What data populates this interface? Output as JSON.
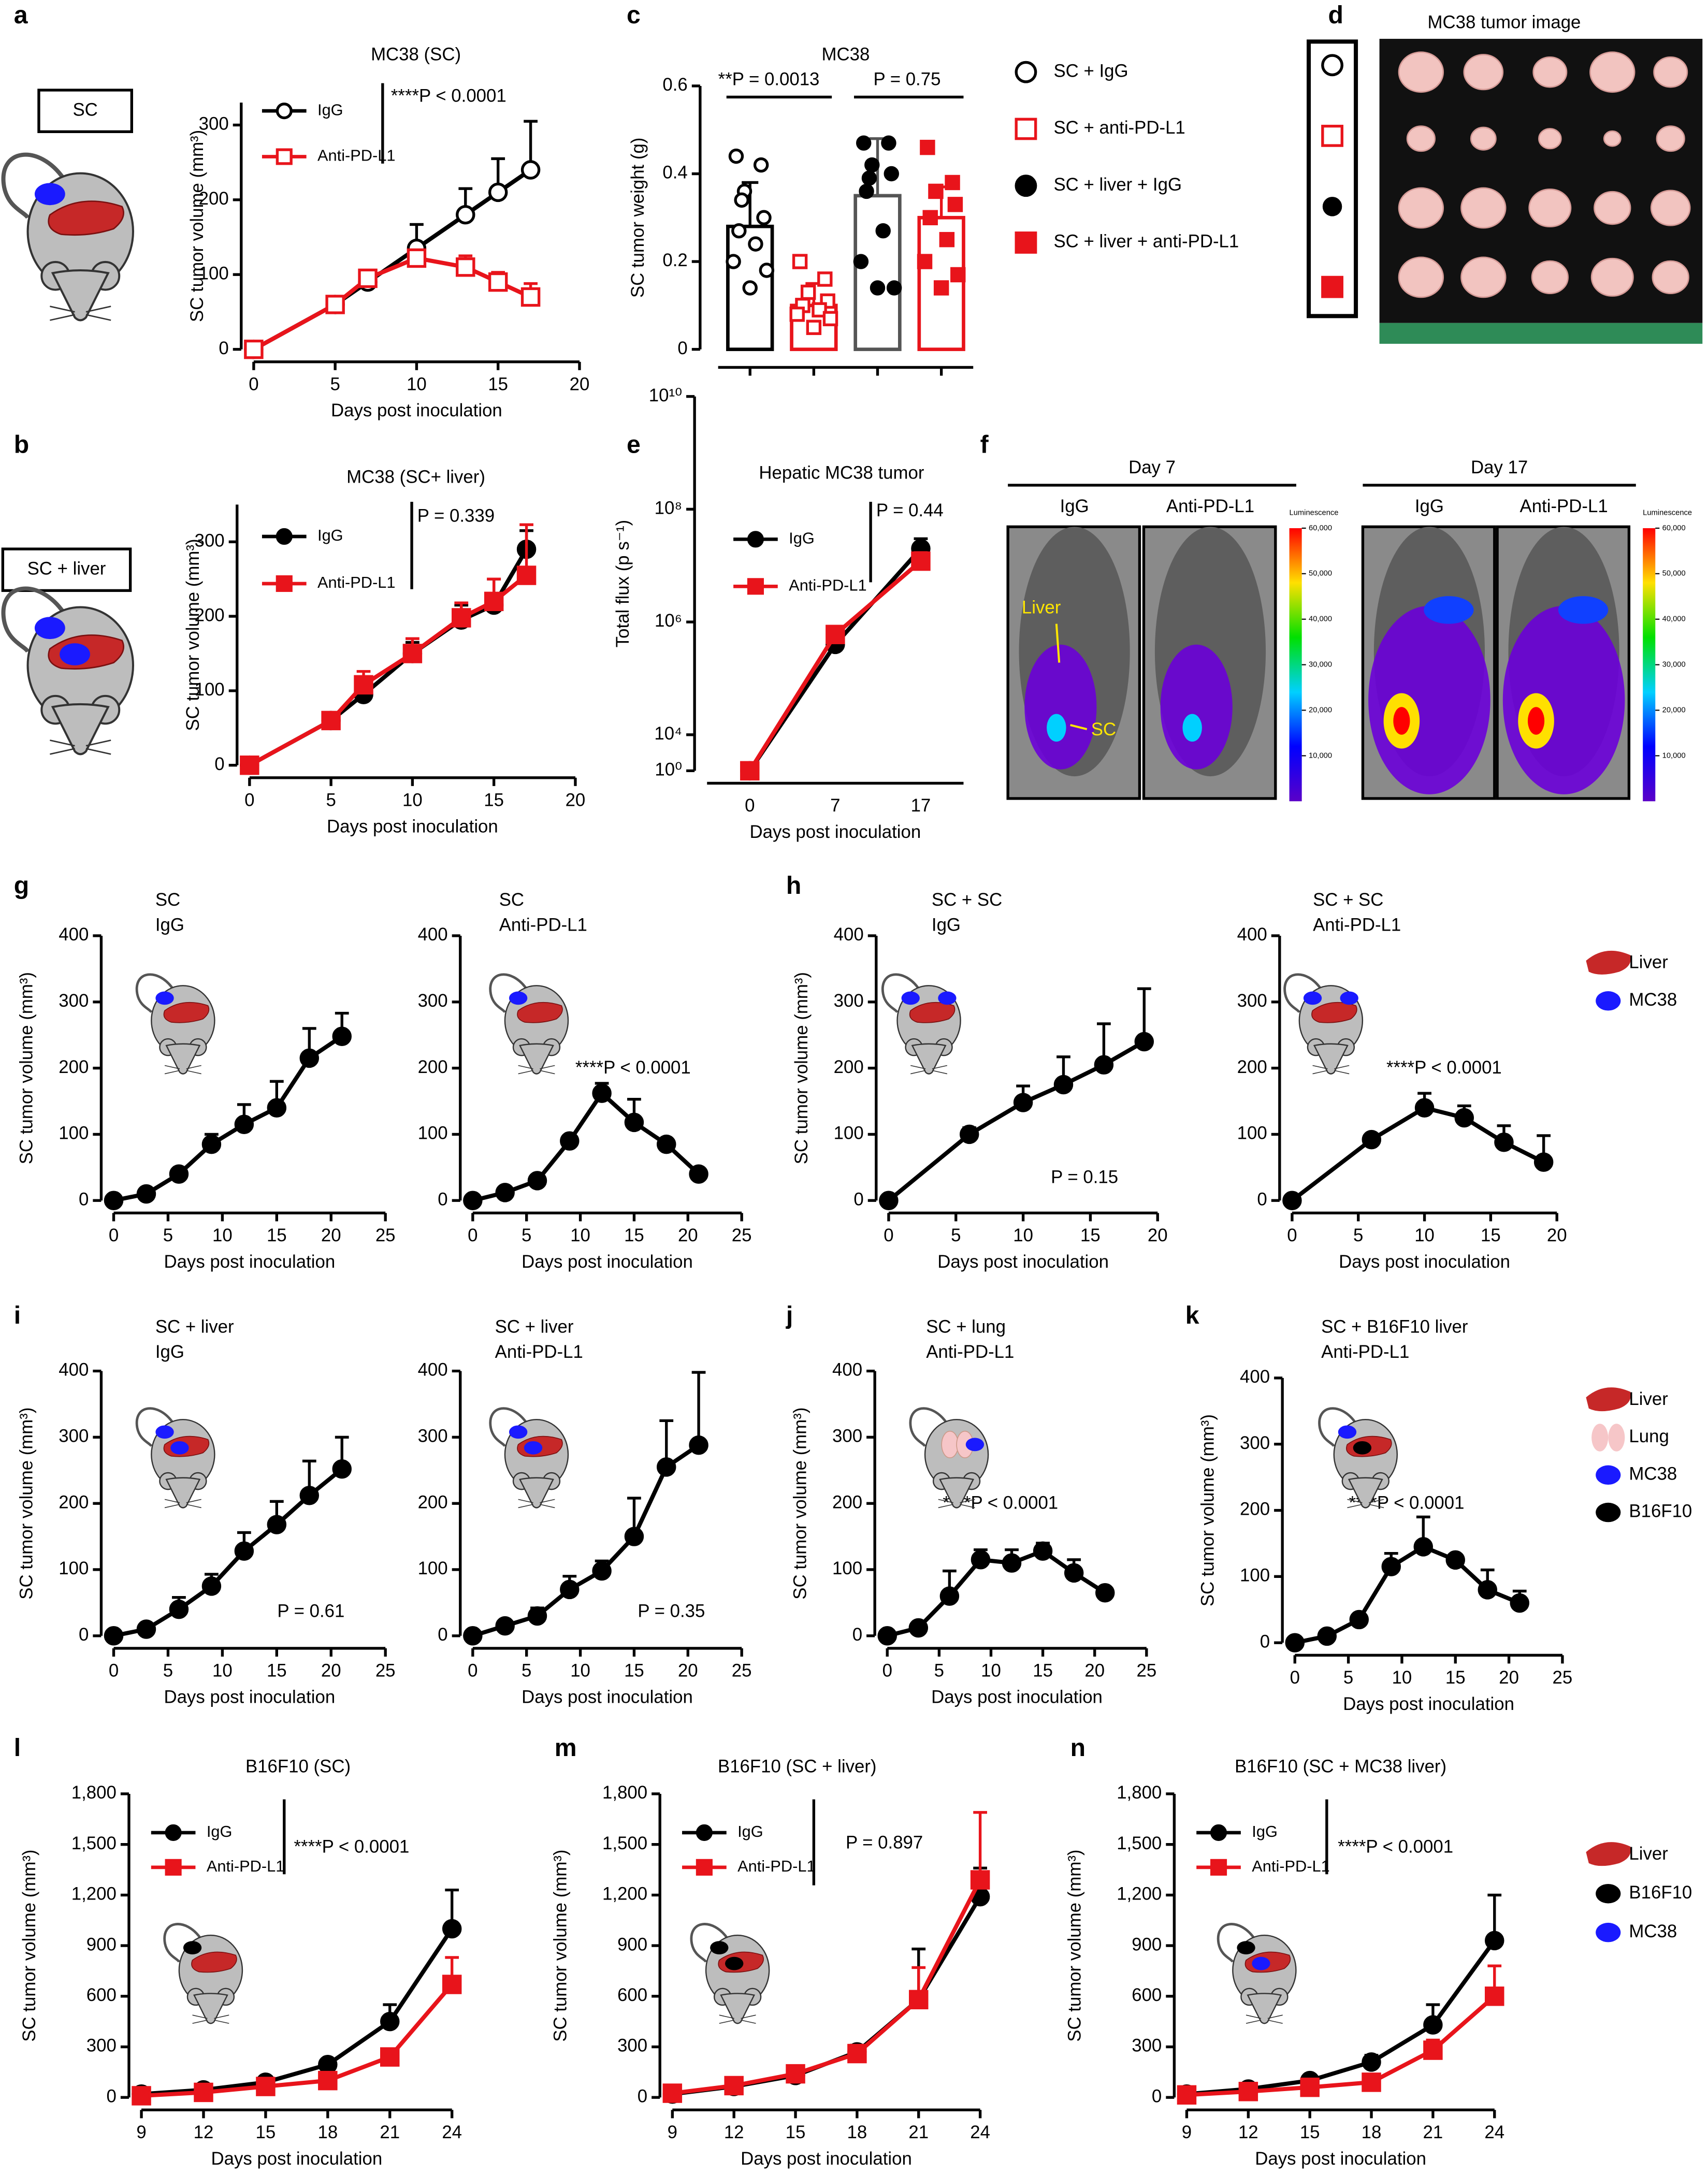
{
  "chart_data": [
    {
      "type": "line",
      "panel_label": "a",
      "title": "MC38 (SC)",
      "icon_label": "SC",
      "xlabel": "Days post inoculation",
      "ylabel": "SC tumor volume (mm³)",
      "x": [
        0,
        5,
        7,
        10,
        13,
        15,
        17
      ],
      "xlim": [
        0,
        20
      ],
      "xticks": [
        0,
        5,
        10,
        15,
        20
      ],
      "ylim": [
        0,
        330
      ],
      "yticks": [
        0,
        100,
        200,
        300
      ],
      "legend": "upper left",
      "annotation": "****P < 0.0001",
      "series": [
        {
          "name": "IgG",
          "color": "#000000",
          "marker": "circle-open",
          "values": [
            0,
            60,
            90,
            135,
            180,
            210,
            240
          ],
          "errors": [
            0,
            6,
            12,
            32,
            35,
            45,
            65
          ]
        },
        {
          "name": "Anti-PD-L1",
          "color": "#e8141b",
          "marker": "square-open",
          "values": [
            0,
            60,
            95,
            122,
            110,
            90,
            70
          ],
          "errors": [
            0,
            5,
            10,
            10,
            15,
            13,
            18
          ]
        }
      ]
    },
    {
      "type": "line",
      "panel_label": "b",
      "title": "MC38 (SC+ liver)",
      "icon_label": "SC + liver",
      "xlabel": "Days post inoculation",
      "ylabel": "SC tumor volume (mm³)",
      "x": [
        0,
        5,
        7,
        10,
        13,
        15,
        17
      ],
      "xlim": [
        0,
        20
      ],
      "xticks": [
        0,
        5,
        10,
        15,
        20
      ],
      "ylim": [
        0,
        350
      ],
      "yticks": [
        0,
        100,
        200,
        300
      ],
      "legend": "upper left",
      "annotation": "P = 0.339",
      "series": [
        {
          "name": "IgG",
          "color": "#000000",
          "marker": "circle",
          "values": [
            0,
            60,
            95,
            150,
            195,
            215,
            290
          ],
          "errors": [
            0,
            5,
            10,
            15,
            20,
            35,
            25
          ]
        },
        {
          "name": "Anti-PD-L1",
          "color": "#e8141b",
          "marker": "square",
          "values": [
            0,
            60,
            108,
            150,
            198,
            220,
            255
          ],
          "errors": [
            0,
            5,
            18,
            20,
            20,
            30,
            68
          ]
        }
      ]
    },
    {
      "type": "bar",
      "panel_label": "c",
      "title": "MC38",
      "ylabel": "SC tumor weight (g)",
      "categories": [
        null,
        null,
        null,
        null
      ],
      "values": [
        0.28,
        0.1,
        0.35,
        0.3
      ],
      "errors": [
        0.1,
        0.05,
        0.13,
        0.07
      ],
      "points": [
        [
          0.44,
          0.42,
          0.36,
          0.3,
          0.27,
          0.24,
          0.2,
          0.18,
          0.14,
          0.34
        ],
        [
          0.2,
          0.16,
          0.13,
          0.11,
          0.1,
          0.09,
          0.08,
          0.07,
          0.05
        ],
        [
          0.47,
          0.47,
          0.42,
          0.4,
          0.36,
          0.27,
          0.2,
          0.14,
          0.14,
          0.39
        ],
        [
          0.46,
          0.38,
          0.36,
          0.33,
          0.3,
          0.25,
          0.2,
          0.17,
          0.14
        ]
      ],
      "legend_labels": [
        "SC + IgG",
        "SC + anti-PD-L1",
        "SC + liver + IgG",
        "SC + liver + anti-PD-L1"
      ],
      "markers": [
        "circle-open",
        "square-open",
        "circle",
        "square"
      ],
      "bar_colors": [
        "#000000",
        "#e8141b",
        "#555555",
        "#e8141b"
      ],
      "point_colors": [
        "#000000",
        "#e8141b",
        "#000000",
        "#e8141b"
      ],
      "ylim": [
        0,
        0.6
      ],
      "yticks": [
        0,
        0.2,
        0.4,
        0.6
      ],
      "annotations": [
        "**P = 0.0013",
        "P = 0.75"
      ]
    },
    {
      "type": "image",
      "panel_label": "d",
      "title": "MC38 tumor image"
    },
    {
      "type": "line",
      "panel_label": "e",
      "title": "Hepatic MC38 tumor",
      "xlabel": "Days post inoculation",
      "ylabel": "Total flux (p s⁻¹)",
      "categories": [
        "0",
        "7",
        "17"
      ],
      "log_y": true,
      "ylim": [
        1,
        10000000000
      ],
      "yticks": [
        {
          "value": 1,
          "label": "10⁰"
        },
        {
          "value": 10000,
          "label": "10⁴"
        },
        {
          "value": 1000000,
          "label": "10⁶"
        },
        {
          "value": 100000000,
          "label": "10⁸"
        },
        {
          "value": 10000000000,
          "label": "10¹⁰"
        }
      ],
      "legend": "upper left",
      "annotation": "P = 0.44",
      "series": [
        {
          "name": "IgG",
          "color": "#000000",
          "marker": "circle",
          "values": [
            1,
            400000,
            20000000
          ],
          "errors": [
            0,
            100000,
            10000000
          ]
        },
        {
          "name": "Anti-PD-L1",
          "color": "#e8141b",
          "marker": "square",
          "values": [
            1,
            600000,
            12000000
          ],
          "errors": [
            0,
            150000,
            5000000
          ]
        }
      ]
    },
    {
      "type": "image",
      "panel_label": "f",
      "groups": [
        {
          "title": "Day 7",
          "labels": [
            "IgG",
            "Anti-PD-L1"
          ]
        },
        {
          "title": "Day 17",
          "labels": [
            "IgG",
            "Anti-PD-L1"
          ]
        }
      ],
      "colorbar_title": "Luminescence",
      "colorbar_ticks": [
        {
          "value": 60000,
          "label": "60,000"
        },
        {
          "value": 50000,
          "label": "50,000"
        },
        {
          "value": 40000,
          "label": "40,000"
        },
        {
          "value": 30000,
          "label": "30,000"
        },
        {
          "value": 20000,
          "label": "20,000"
        },
        {
          "value": 10000,
          "label": "10,000"
        }
      ],
      "annotations": [
        "Liver",
        "SC"
      ]
    },
    {
      "type": "line",
      "panel_label": "g",
      "title": [
        "SC",
        "IgG"
      ],
      "xlabel": "Days post inoculation",
      "ylabel": "SC tumor volume (mm³)",
      "x": [
        0,
        3,
        6,
        9,
        12,
        15,
        18,
        21
      ],
      "xlim": [
        0,
        25
      ],
      "xticks": [
        0,
        5,
        10,
        15,
        20,
        25
      ],
      "ylim": [
        0,
        400
      ],
      "yticks": [
        0,
        100,
        200,
        300,
        400
      ],
      "color": "#000000",
      "marker": "circle",
      "values": [
        0,
        10,
        40,
        85,
        115,
        140,
        215,
        248
      ],
      "errors": [
        0,
        3,
        5,
        15,
        30,
        40,
        45,
        35
      ]
    },
    {
      "type": "line",
      "title": [
        "SC",
        "Anti-PD-L1"
      ],
      "xlabel": "Days post inoculation",
      "annotation": "****P < 0.0001",
      "x": [
        0,
        3,
        6,
        9,
        12,
        15,
        18,
        21
      ],
      "xlim": [
        0,
        25
      ],
      "xticks": [
        0,
        5,
        10,
        15,
        20,
        25
      ],
      "ylim": [
        0,
        400
      ],
      "yticks": [
        0,
        100,
        200,
        300,
        400
      ],
      "color": "#000000",
      "marker": "circle",
      "values": [
        0,
        12,
        30,
        90,
        162,
        118,
        85,
        40
      ],
      "errors": [
        0,
        3,
        5,
        8,
        15,
        35,
        8,
        4
      ]
    },
    {
      "type": "line",
      "panel_label": "h",
      "title": [
        "SC + SC",
        "IgG"
      ],
      "xlabel": "Days post inoculation",
      "ylabel": "SC tumor volume (mm³)",
      "annotation": "P = 0.15",
      "x": [
        0,
        6,
        10,
        13,
        16,
        19
      ],
      "xlim": [
        0,
        20
      ],
      "xticks": [
        0,
        5,
        10,
        15,
        20
      ],
      "ylim": [
        0,
        400
      ],
      "yticks": [
        0,
        100,
        200,
        300,
        400
      ],
      "color": "#000000",
      "marker": "circle",
      "values": [
        0,
        100,
        148,
        175,
        205,
        240
      ],
      "errors": [
        0,
        10,
        25,
        42,
        62,
        80
      ]
    },
    {
      "type": "line",
      "title": [
        "SC + SC",
        "Anti-PD-L1"
      ],
      "xlabel": "Days post inoculation",
      "annotation": "****P < 0.0001",
      "icon_legend": [
        "Liver",
        "MC38"
      ],
      "x": [
        0,
        6,
        10,
        13,
        16,
        19
      ],
      "xlim": [
        0,
        20
      ],
      "xticks": [
        0,
        5,
        10,
        15,
        20
      ],
      "ylim": [
        0,
        400
      ],
      "yticks": [
        0,
        100,
        200,
        300,
        400
      ],
      "color": "#000000",
      "marker": "circle",
      "values": [
        0,
        92,
        140,
        125,
        88,
        58
      ],
      "errors": [
        0,
        5,
        22,
        18,
        25,
        40
      ]
    },
    {
      "type": "line",
      "panel_label": "i",
      "title": [
        "SC + liver",
        "IgG"
      ],
      "xlabel": "Days post inoculation",
      "ylabel": "SC tumor volume (mm³)",
      "annotation": "P = 0.61",
      "x": [
        0,
        3,
        6,
        9,
        12,
        15,
        18,
        21
      ],
      "xlim": [
        0,
        25
      ],
      "xticks": [
        0,
        5,
        10,
        15,
        20,
        25
      ],
      "ylim": [
        0,
        400
      ],
      "yticks": [
        0,
        100,
        200,
        300,
        400
      ],
      "color": "#000000",
      "marker": "circle",
      "values": [
        0,
        10,
        40,
        75,
        128,
        168,
        212,
        252
      ],
      "errors": [
        0,
        3,
        18,
        18,
        28,
        35,
        52,
        48
      ]
    },
    {
      "type": "line",
      "title": [
        "SC + liver",
        "Anti-PD-L1"
      ],
      "xlabel": "Days post inoculation",
      "annotation": "P = 0.35",
      "x": [
        0,
        3,
        6,
        9,
        12,
        15,
        18,
        21
      ],
      "xlim": [
        0,
        25
      ],
      "xticks": [
        0,
        5,
        10,
        15,
        20,
        25
      ],
      "ylim": [
        0,
        400
      ],
      "yticks": [
        0,
        100,
        200,
        300,
        400
      ],
      "color": "#000000",
      "marker": "circle",
      "values": [
        0,
        15,
        30,
        70,
        98,
        150,
        255,
        288
      ],
      "errors": [
        0,
        5,
        12,
        20,
        15,
        58,
        70,
        110
      ]
    },
    {
      "type": "line",
      "panel_label": "j",
      "title": [
        "SC + lung",
        "Anti-PD-L1"
      ],
      "xlabel": "Days post inoculation",
      "ylabel": "SC tumor volume (mm³)",
      "annotation": "****P < 0.0001",
      "x": [
        0,
        3,
        6,
        9,
        12,
        15,
        18,
        21
      ],
      "xlim": [
        0,
        25
      ],
      "xticks": [
        0,
        5,
        10,
        15,
        20,
        25
      ],
      "ylim": [
        0,
        400
      ],
      "yticks": [
        0,
        100,
        200,
        300,
        400
      ],
      "color": "#000000",
      "marker": "circle",
      "values": [
        0,
        12,
        60,
        115,
        110,
        128,
        95,
        65
      ],
      "errors": [
        0,
        4,
        38,
        15,
        20,
        12,
        20,
        5
      ]
    },
    {
      "type": "line",
      "panel_label": "k",
      "title": [
        "SC + B16F10 liver",
        "Anti-PD-L1"
      ],
      "xlabel": "Days post inoculation",
      "ylabel": "SC tumor volume (mm³)",
      "annotation": "****P < 0.0001",
      "icon_legend": [
        "Liver",
        "Lung",
        "MC38",
        "B16F10"
      ],
      "x": [
        0,
        3,
        6,
        9,
        12,
        15,
        18,
        21
      ],
      "xlim": [
        0,
        25
      ],
      "xticks": [
        0,
        5,
        10,
        15,
        20,
        25
      ],
      "ylim": [
        0,
        400
      ],
      "yticks": [
        0,
        100,
        200,
        300,
        400
      ],
      "color": "#000000",
      "marker": "circle",
      "values": [
        0,
        10,
        35,
        115,
        145,
        125,
        80,
        60
      ],
      "errors": [
        0,
        3,
        5,
        20,
        45,
        8,
        30,
        18
      ]
    },
    {
      "type": "line",
      "panel_label": "l",
      "title": "B16F10 (SC)",
      "xlabel": "Days post inoculation",
      "ylabel": "SC tumor volume (mm³)",
      "annotation": "****P < 0.0001",
      "legend": "upper left",
      "x": [
        9,
        12,
        15,
        18,
        21,
        24
      ],
      "xlim": [
        9,
        24
      ],
      "xticks": [
        9,
        12,
        15,
        18,
        21,
        24
      ],
      "ylim": [
        0,
        1800
      ],
      "yticks": [
        0,
        300,
        600,
        900,
        {
          "value": 1200,
          "label": "1,200"
        },
        {
          "value": 1500,
          "label": "1,500"
        },
        {
          "value": 1800,
          "label": "1,800"
        }
      ],
      "series": [
        {
          "name": "IgG",
          "color": "#000000",
          "marker": "circle",
          "values": [
            20,
            45,
            90,
            195,
            450,
            1000
          ],
          "errors": [
            0,
            10,
            15,
            30,
            100,
            230
          ]
        },
        {
          "name": "Anti-PD-L1",
          "color": "#e8141b",
          "marker": "square",
          "values": [
            10,
            30,
            65,
            100,
            240,
            670
          ],
          "errors": [
            0,
            5,
            10,
            20,
            40,
            160
          ]
        }
      ]
    },
    {
      "type": "line",
      "panel_label": "m",
      "title": "B16F10 (SC + liver)",
      "xlabel": "Days post inoculation",
      "ylabel": "SC tumor volume (mm³)",
      "annotation": "P = 0.897",
      "legend": "upper left",
      "x": [
        9,
        12,
        15,
        18,
        21,
        24
      ],
      "xlim": [
        9,
        24
      ],
      "xticks": [
        9,
        12,
        15,
        18,
        21,
        24
      ],
      "ylim": [
        0,
        1800
      ],
      "yticks": [
        0,
        300,
        600,
        900,
        {
          "value": 1200,
          "label": "1,200"
        },
        {
          "value": 1500,
          "label": "1,500"
        },
        {
          "value": 1800,
          "label": "1,800"
        }
      ],
      "series": [
        {
          "name": "IgG",
          "color": "#000000",
          "marker": "circle",
          "values": [
            20,
            65,
            130,
            270,
            580,
            1190
          ],
          "errors": [
            0,
            10,
            15,
            40,
            300,
            170
          ]
        },
        {
          "name": "Anti-PD-L1",
          "color": "#e8141b",
          "marker": "square",
          "values": [
            25,
            70,
            140,
            260,
            580,
            1290
          ],
          "errors": [
            0,
            10,
            20,
            40,
            190,
            400
          ]
        }
      ]
    },
    {
      "type": "line",
      "panel_label": "n",
      "title": "B16F10 (SC + MC38 liver)",
      "xlabel": "Days post inoculation",
      "ylabel": "SC tumor volume (mm³)",
      "annotation": "****P < 0.0001",
      "legend": "upper left",
      "icon_legend": [
        "Liver",
        "B16F10",
        "MC38"
      ],
      "x": [
        9,
        12,
        15,
        18,
        21,
        24
      ],
      "xlim": [
        9,
        24
      ],
      "xticks": [
        9,
        12,
        15,
        18,
        21,
        24
      ],
      "ylim": [
        0,
        1800
      ],
      "yticks": [
        0,
        300,
        600,
        900,
        {
          "value": 1200,
          "label": "1,200"
        },
        {
          "value": 1500,
          "label": "1,500"
        },
        {
          "value": 1800,
          "label": "1,800"
        }
      ],
      "series": [
        {
          "name": "IgG",
          "color": "#000000",
          "marker": "circle",
          "values": [
            20,
            50,
            100,
            210,
            430,
            930
          ],
          "errors": [
            0,
            10,
            15,
            40,
            120,
            270
          ]
        },
        {
          "name": "Anti-PD-L1",
          "color": "#e8141b",
          "marker": "square",
          "values": [
            15,
            35,
            60,
            90,
            280,
            600
          ],
          "errors": [
            0,
            10,
            15,
            20,
            60,
            180
          ]
        }
      ]
    }
  ]
}
